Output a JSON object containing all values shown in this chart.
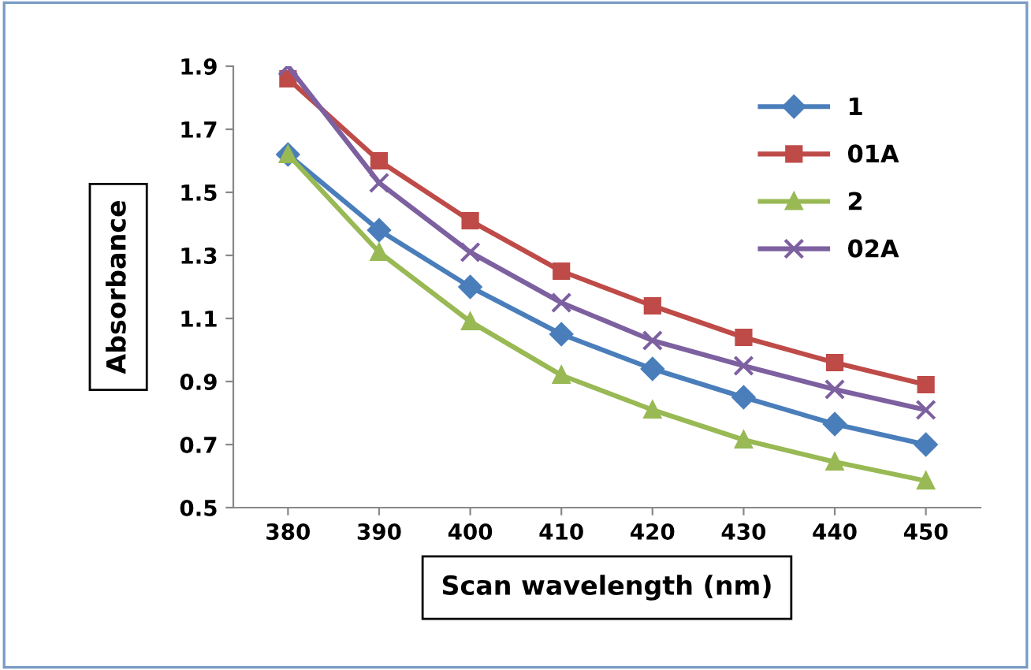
{
  "chart_data": {
    "type": "line",
    "xlabel": "Scan wavelength (nm)",
    "ylabel": "Absorbance",
    "categories": [
      "380",
      "390",
      "400",
      "410",
      "420",
      "430",
      "440",
      "450"
    ],
    "series": [
      {
        "name": "1",
        "color": "#4a7ebb",
        "marker": "diamond",
        "values": [
          1.62,
          1.38,
          1.2,
          1.05,
          0.94,
          0.85,
          0.765,
          0.7
        ]
      },
      {
        "name": "01A",
        "color": "#be4b48",
        "marker": "square",
        "values": [
          1.86,
          1.6,
          1.41,
          1.25,
          1.14,
          1.04,
          0.96,
          0.89
        ]
      },
      {
        "name": "2",
        "color": "#98b954",
        "marker": "triangle",
        "values": [
          1.62,
          1.31,
          1.09,
          0.92,
          0.81,
          0.715,
          0.645,
          0.585
        ]
      },
      {
        "name": "02A",
        "color": "#7d60a0",
        "marker": "cross",
        "values": [
          1.9,
          1.53,
          1.31,
          1.15,
          1.03,
          0.95,
          0.875,
          0.81
        ]
      }
    ],
    "ylim": [
      0.5,
      1.9
    ],
    "yticks": [
      0.5,
      0.7,
      0.9,
      1.1,
      1.3,
      1.5,
      1.7,
      1.9
    ],
    "grid": false,
    "legend": "top right"
  }
}
